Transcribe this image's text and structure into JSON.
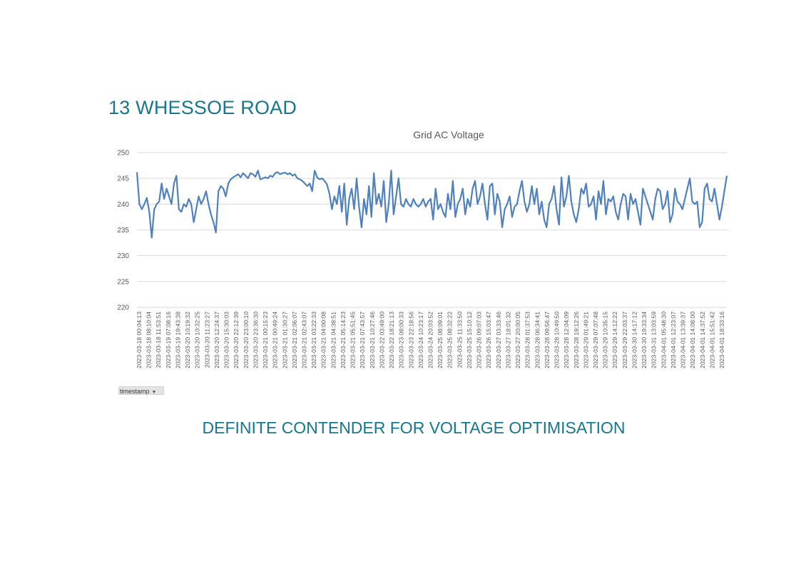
{
  "page": {
    "title": "13 WHESSOE ROAD",
    "conclusion": "DEFINITE CONTENDER FOR VOLTAGE OPTIMISATION"
  },
  "filter": {
    "label": "timestamp",
    "icon": "dropdown-arrow-icon"
  },
  "colors": {
    "heading": "#17778c",
    "series": "#4f81bd",
    "grid": "#d9d9d9",
    "axis_text": "#595959"
  },
  "chart_data": {
    "type": "line",
    "title": "Grid AC Voltage",
    "xlabel": "",
    "ylabel": "",
    "ylim": [
      220,
      250
    ],
    "yticks": [
      220,
      225,
      230,
      235,
      240,
      245,
      250
    ],
    "grid": true,
    "legend": "none",
    "x_tick_labels": [
      "2023-03-18 00:04:13",
      "2023-03-18 08:10:04",
      "2023-03-18 11:53:51",
      "2023-03-19 07:08:16",
      "2023-03-19 19:43:38",
      "2023-03-20 10:19:32",
      "2023-03-20 10:32:25",
      "2023-03-20 11:23:27",
      "2023-03-20 12:24:37",
      "2023-03-20 15:30:03",
      "2023-03-20 22:12:39",
      "2023-03-20 23:00:10",
      "2023-03-20 23:36:30",
      "2023-03-21 00:15:23",
      "2023-03-21 00:49:24",
      "2023-03-21 01:30:27",
      "2023-03-21 02:06:07",
      "2023-03-21 02:43:07",
      "2023-03-21 03:22:33",
      "2023-03-21 04:00:08",
      "2023-03-21 04:38:51",
      "2023-03-21 05:14:23",
      "2023-03-21 05:51:45",
      "2023-03-21 07:43:57",
      "2023-03-21 10:27:46",
      "2023-03-22 03:49:00",
      "2023-03-22 18:21:13",
      "2023-03-23 08:00:33",
      "2023-03-23 22:18:56",
      "2023-03-24 10:23:17",
      "2023-03-24 20:03:52",
      "2023-03-25 08:09:01",
      "2023-03-25 08:32:22",
      "2023-03-25 11:33:50",
      "2023-03-25 15:10:12",
      "2023-03-26 09:07:03",
      "2023-03-26 15:03:47",
      "2023-03-27 03:33:46",
      "2023-03-27 18:01:32",
      "2023-03-27 20:00:05",
      "2023-03-28 01:37:53",
      "2023-03-28 06:34:41",
      "2023-03-28 09:56:47",
      "2023-03-28 10:49:50",
      "2023-03-28 12:04:09",
      "2023-03-28 19:12:26",
      "2023-03-29 01:49:21",
      "2023-03-29 07:07:48",
      "2023-03-29 10:35:15",
      "2023-03-29 14:12:22",
      "2023-03-29 22:03:37",
      "2023-03-30 14:17:12",
      "2023-03-30 19:33:34",
      "2023-03-31 13:03:59",
      "2023-04-01 05:48:30",
      "2023-04-01 12:23:07",
      "2023-04-01 13:39:37",
      "2023-04-01 14:08:00",
      "2023-04-01 14:37:52",
      "2023-04-01 15:51:42",
      "2023-04-01 18:33:16"
    ],
    "series": [
      {
        "values": [
          246.2,
          240,
          239,
          240,
          241.2,
          238.5,
          233.5,
          239,
          240,
          240.5,
          244,
          241,
          243,
          241.5,
          240,
          244,
          245.5,
          239,
          238.5,
          240,
          239.5,
          241,
          240,
          236.5,
          239,
          241.5,
          240,
          241,
          242.5,
          240,
          238,
          236.5,
          234.5,
          242.5,
          243.5,
          243,
          241.5,
          244,
          244.8,
          245.2,
          245.5,
          245.8,
          245.2,
          246,
          245.5,
          245,
          246,
          245.8,
          245.3,
          246.5,
          244.8,
          245,
          245.2,
          245,
          245.5,
          245.3,
          246,
          246.2,
          245.8,
          246,
          246.1,
          245.8,
          246,
          245.5,
          245.8,
          245,
          244.8,
          244.5,
          244,
          243.5,
          244,
          242.5,
          246.5,
          245.2,
          244.8,
          245,
          244.5,
          243.8,
          242,
          239,
          241.5,
          240,
          243.5,
          238.5,
          244,
          236,
          241,
          243,
          239,
          245,
          239.5,
          235.5,
          241,
          238,
          243.5,
          237.5,
          246,
          240,
          242,
          239.5,
          244.5,
          236.5,
          240,
          246.5,
          238,
          241.5,
          245,
          240,
          239.5,
          241,
          240,
          239.5,
          241,
          240,
          239.5,
          240,
          241,
          239.5,
          240.5,
          241,
          237,
          243,
          239,
          240,
          238.5,
          237.5,
          242,
          239,
          244.5,
          237.5,
          240,
          241,
          243,
          238,
          241,
          239.5,
          243,
          244.5,
          240,
          241.5,
          244,
          240,
          237,
          243.5,
          244,
          238,
          242,
          240.5,
          235.5,
          239,
          240,
          241.5,
          237.5,
          239.5,
          240,
          242.5,
          244.5,
          240.5,
          238.5,
          240,
          243.5,
          240,
          243,
          238,
          240.5,
          237,
          235.5,
          240,
          241,
          243.5,
          239,
          236,
          245.2,
          239.5,
          241.5,
          245.5,
          240.5,
          238,
          236.5,
          239,
          243,
          242,
          244,
          239.5,
          240,
          241.5,
          237,
          242.5,
          240,
          244.5,
          238,
          241,
          240.5,
          241.5,
          238.5,
          237,
          240,
          242,
          241.5,
          237,
          242,
          240,
          241,
          238.5,
          236,
          243,
          241.5,
          240,
          238.5,
          237,
          241,
          243,
          242.5,
          239,
          240,
          242.5,
          236.5,
          238,
          243,
          240.5,
          240,
          239,
          241,
          243,
          245,
          240.5,
          240,
          240.5,
          235.5,
          236.5,
          243,
          244,
          241,
          240.5,
          243,
          240,
          237,
          239.5,
          242.5,
          245.5
        ]
      }
    ]
  }
}
